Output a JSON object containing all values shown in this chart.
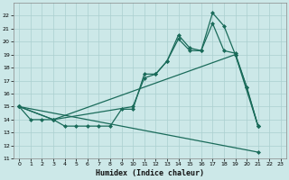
{
  "bg_color": "#cce8e8",
  "grid_color": "#aacfcf",
  "line_color": "#1a6b5a",
  "xlabel": "Humidex (Indice chaleur)",
  "xlim": [
    -0.5,
    23.5
  ],
  "ylim": [
    11,
    23
  ],
  "xticks": [
    0,
    1,
    2,
    3,
    4,
    5,
    6,
    7,
    8,
    9,
    10,
    11,
    12,
    13,
    14,
    15,
    16,
    17,
    18,
    19,
    20,
    21,
    22,
    23
  ],
  "yticks": [
    11,
    12,
    13,
    14,
    15,
    16,
    17,
    18,
    19,
    20,
    21,
    22
  ],
  "series1_x": [
    0,
    1,
    2,
    3,
    4,
    5,
    6,
    7,
    8,
    9,
    10,
    11,
    12,
    13,
    14,
    15,
    16,
    17,
    18,
    19,
    20,
    21
  ],
  "series1_y": [
    15,
    14,
    14,
    14,
    13.5,
    13.5,
    13.5,
    13.5,
    13.5,
    14.8,
    14.8,
    17.5,
    17.5,
    18.5,
    20.2,
    19.3,
    19.3,
    22.2,
    21.2,
    19.0,
    16.5,
    13.5
  ],
  "series2_x": [
    0,
    3,
    10,
    11,
    12,
    13,
    14,
    15,
    16,
    17,
    18,
    19,
    20,
    21
  ],
  "series2_y": [
    15,
    14,
    15.0,
    17.2,
    17.5,
    18.5,
    20.5,
    19.5,
    19.3,
    21.4,
    19.3,
    19.1,
    16.5,
    13.5
  ],
  "series3_x": [
    0,
    3,
    19,
    21
  ],
  "series3_y": [
    15,
    14,
    19.0,
    13.5
  ],
  "series4_x": [
    0,
    21
  ],
  "series4_y": [
    15,
    11.5
  ]
}
